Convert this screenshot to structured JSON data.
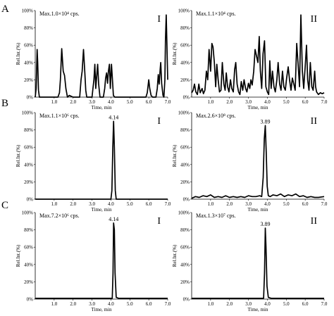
{
  "row_labels": [
    "A",
    "B",
    "C"
  ],
  "chart_data": [
    {
      "type": "line",
      "row": "A",
      "panel": "I",
      "max_label": "Max.1.0×10⁴ cps.",
      "xlabel": "Time, min",
      "ylabel": "Rel.Int.(%)",
      "xlim": [
        0,
        7.0
      ],
      "ylim": [
        0,
        100
      ],
      "xticks": [
        "1.0",
        "2.0",
        "3.0",
        "4.0",
        "5.0",
        "6.0",
        "7.0"
      ],
      "yticks": [
        "0%",
        "20%",
        "40%",
        "60%",
        "80%",
        "100%"
      ],
      "peak_label": "",
      "x": [
        0,
        0.05,
        0.1,
        0.13,
        0.17,
        0.22,
        0.3,
        1.0,
        1.2,
        1.28,
        1.33,
        1.4,
        1.48,
        1.55,
        1.62,
        1.7,
        1.8,
        1.9,
        2.0,
        2.35,
        2.42,
        2.48,
        2.55,
        2.62,
        2.67,
        2.72,
        2.8,
        2.9,
        3.0,
        3.05,
        3.1,
        3.15,
        3.2,
        3.25,
        3.3,
        3.35,
        3.42,
        3.6,
        3.67,
        3.72,
        3.77,
        3.82,
        3.87,
        3.92,
        3.97,
        4.03,
        4.08,
        4.13,
        4.2,
        4.3,
        4.5,
        5.7,
        5.85,
        5.92,
        6.0,
        6.05,
        6.12,
        6.2,
        6.3,
        6.38,
        6.45,
        6.5,
        6.55,
        6.6,
        6.63,
        6.68,
        6.75,
        6.8,
        6.85,
        6.88,
        6.92,
        6.96,
        7.0
      ],
      "y": [
        0,
        10,
        55,
        40,
        8,
        0,
        0,
        0,
        0,
        5,
        20,
        56,
        30,
        25,
        10,
        0,
        2,
        1,
        0,
        0,
        20,
        30,
        55,
        28,
        8,
        0,
        0,
        0,
        0,
        10,
        20,
        38,
        10,
        25,
        38,
        15,
        0,
        0,
        10,
        22,
        28,
        16,
        30,
        38,
        10,
        38,
        20,
        2,
        0,
        0,
        0,
        0,
        0,
        5,
        20,
        10,
        2,
        0,
        0,
        0,
        10,
        26,
        15,
        32,
        40,
        16,
        2,
        0,
        20,
        65,
        95,
        60,
        20
      ]
    },
    {
      "type": "line",
      "row": "A",
      "panel": "II",
      "max_label": "Max.1.1×10⁴ cps.",
      "xlabel": "Time, min",
      "ylabel": "Rel.Int.(%)",
      "xlim": [
        0,
        7.0
      ],
      "ylim": [
        0,
        100
      ],
      "xticks": [
        "1.0",
        "2.0",
        "3.0",
        "4.0",
        "5.0",
        "6.0",
        "7.0"
      ],
      "yticks": [
        "0%",
        "20%",
        "40%",
        "60%",
        "80%",
        "100%"
      ],
      "peak_label": "",
      "x": [
        0,
        0.08,
        0.15,
        0.22,
        0.3,
        0.38,
        0.45,
        0.55,
        0.62,
        0.7,
        0.78,
        0.85,
        0.92,
        1.0,
        1.07,
        1.13,
        1.2,
        1.27,
        1.33,
        1.4,
        1.47,
        1.55,
        1.62,
        1.7,
        1.77,
        1.83,
        1.9,
        1.97,
        2.05,
        2.12,
        2.2,
        2.27,
        2.33,
        2.4,
        2.48,
        2.55,
        2.62,
        2.7,
        2.77,
        2.85,
        2.92,
        3.0,
        3.07,
        3.13,
        3.2,
        3.28,
        3.35,
        3.42,
        3.5,
        3.57,
        3.63,
        3.7,
        3.77,
        3.85,
        3.92,
        4.0,
        4.07,
        4.13,
        4.2,
        4.27,
        4.35,
        4.42,
        4.5,
        4.57,
        4.65,
        4.72,
        4.8,
        4.87,
        4.95,
        5.02,
        5.1,
        5.17,
        5.25,
        5.32,
        5.4,
        5.47,
        5.55,
        5.62,
        5.7,
        5.77,
        5.85,
        5.92,
        6.0,
        6.07,
        6.13,
        6.2,
        6.27,
        6.35,
        6.42,
        6.5,
        6.55,
        6.6,
        6.7,
        6.8,
        6.9,
        7.0
      ],
      "y": [
        5,
        8,
        15,
        6,
        3,
        15,
        5,
        10,
        4,
        8,
        30,
        20,
        55,
        30,
        62,
        58,
        40,
        12,
        38,
        20,
        6,
        8,
        40,
        15,
        8,
        28,
        12,
        6,
        20,
        10,
        6,
        32,
        40,
        15,
        6,
        3,
        18,
        8,
        20,
        10,
        6,
        16,
        10,
        20,
        14,
        30,
        55,
        48,
        40,
        70,
        30,
        10,
        50,
        65,
        12,
        6,
        3,
        42,
        10,
        30,
        12,
        6,
        20,
        40,
        15,
        8,
        30,
        12,
        8,
        22,
        35,
        20,
        8,
        22,
        15,
        8,
        62,
        40,
        12,
        95,
        30,
        10,
        35,
        60,
        20,
        8,
        40,
        12,
        8,
        30,
        12,
        6,
        3,
        5,
        4,
        5
      ]
    },
    {
      "type": "line",
      "row": "B",
      "panel": "I",
      "max_label": "Max.1.1×10⁶ cps.",
      "xlabel": "Time, min",
      "ylabel": "Rel.Int.(%)",
      "xlim": [
        0,
        7.0
      ],
      "ylim": [
        0,
        100
      ],
      "xticks": [
        "1.0",
        "2.0",
        "3.0",
        "4.0",
        "5.0",
        "6.0",
        "7.0"
      ],
      "yticks": [
        "0%",
        "20%",
        "40%",
        "60%",
        "80%",
        "100%"
      ],
      "peak_label": "4.14",
      "x": [
        0,
        3.9,
        4.0,
        4.05,
        4.1,
        4.14,
        4.18,
        4.23,
        4.28,
        4.4,
        7.0
      ],
      "y": [
        0,
        0,
        0,
        10,
        60,
        90,
        60,
        10,
        0,
        0,
        0
      ]
    },
    {
      "type": "line",
      "row": "B",
      "panel": "II",
      "max_label": "Max.2.6×10⁸ cps.",
      "xlabel": "Time, min",
      "ylabel": "Rel.Int.(%)",
      "xlim": [
        0,
        7.0
      ],
      "ylim": [
        0,
        100
      ],
      "xticks": [
        "1.0",
        "2.0",
        "3.0",
        "4.0",
        "5.0",
        "6.0",
        "7.0"
      ],
      "yticks": [
        "0%",
        "20%",
        "40%",
        "60%",
        "80%",
        "100%"
      ],
      "peak_label": "3.89",
      "x": [
        0,
        0.2,
        0.4,
        0.6,
        0.8,
        1.0,
        1.2,
        1.4,
        1.6,
        1.8,
        2.0,
        2.2,
        2.4,
        2.6,
        2.8,
        3.0,
        3.2,
        3.4,
        3.6,
        3.7,
        3.78,
        3.84,
        3.89,
        3.94,
        3.99,
        4.05,
        4.15,
        4.3,
        4.5,
        4.7,
        4.9,
        5.1,
        5.3,
        5.5,
        5.7,
        5.9,
        6.1,
        6.3,
        6.5,
        6.7,
        7.0
      ],
      "y": [
        1,
        3,
        2,
        4,
        3,
        5,
        2,
        3,
        2,
        4,
        2,
        3,
        2,
        3,
        2,
        4,
        3,
        3,
        4,
        3,
        25,
        70,
        85,
        55,
        15,
        4,
        3,
        5,
        4,
        6,
        3,
        5,
        4,
        6,
        3,
        4,
        2,
        3,
        2,
        2,
        3
      ]
    },
    {
      "type": "line",
      "row": "C",
      "panel": "I",
      "max_label": "Max.7.2×10⁶ cps.",
      "xlabel": "Time, min",
      "ylabel": "Rel.Int.(%)",
      "xlim": [
        0,
        7.0
      ],
      "ylim": [
        0,
        100
      ],
      "xticks": [
        "1.0",
        "2.0",
        "3.0",
        "4.0",
        "5.0",
        "6.0",
        "7.0"
      ],
      "yticks": [
        "0%",
        "20%",
        "40%",
        "60%",
        "80%",
        "100%"
      ],
      "peak_label": "4.14",
      "x": [
        0,
        4.0,
        4.07,
        4.11,
        4.14,
        4.18,
        4.22,
        4.28,
        4.4,
        7.0
      ],
      "y": [
        1,
        1,
        1,
        30,
        88,
        80,
        30,
        2,
        1,
        1
      ]
    },
    {
      "type": "line",
      "row": "C",
      "panel": "II",
      "max_label": "Max.1.3×10⁷ cps.",
      "xlabel": "Time, min",
      "ylabel": "Rel.Int.(%)",
      "xlim": [
        0,
        7.0
      ],
      "ylim": [
        0,
        100
      ],
      "xticks": [
        "1.0",
        "2.0",
        "3.0",
        "4.0",
        "5.0",
        "6.0",
        "7.0"
      ],
      "yticks": [
        "0%",
        "20%",
        "40%",
        "60%",
        "80%",
        "100%"
      ],
      "peak_label": "3.89",
      "x": [
        0,
        3.7,
        3.8,
        3.85,
        3.89,
        3.93,
        3.98,
        4.05,
        4.2,
        7.0
      ],
      "y": [
        1,
        1,
        1,
        30,
        82,
        60,
        15,
        2,
        1,
        1
      ]
    }
  ]
}
